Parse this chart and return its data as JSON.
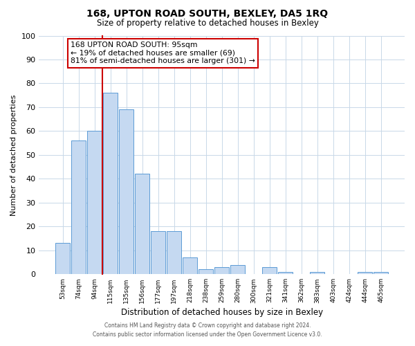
{
  "title": "168, UPTON ROAD SOUTH, BEXLEY, DA5 1RQ",
  "subtitle": "Size of property relative to detached houses in Bexley",
  "xlabel": "Distribution of detached houses by size in Bexley",
  "ylabel": "Number of detached properties",
  "bar_labels": [
    "53sqm",
    "74sqm",
    "94sqm",
    "115sqm",
    "135sqm",
    "156sqm",
    "177sqm",
    "197sqm",
    "218sqm",
    "238sqm",
    "259sqm",
    "280sqm",
    "300sqm",
    "321sqm",
    "341sqm",
    "362sqm",
    "383sqm",
    "403sqm",
    "424sqm",
    "444sqm",
    "465sqm"
  ],
  "bar_values": [
    13,
    56,
    60,
    76,
    69,
    42,
    18,
    18,
    7,
    2,
    3,
    4,
    0,
    3,
    1,
    0,
    1,
    0,
    0,
    1,
    1
  ],
  "bar_color": "#c5d9f1",
  "bar_edge_color": "#5b9bd5",
  "ylim": [
    0,
    100
  ],
  "vline_index": 2,
  "annotation_line1": "168 UPTON ROAD SOUTH: 95sqm",
  "annotation_line2": "← 19% of detached houses are smaller (69)",
  "annotation_line3": "81% of semi-detached houses are larger (301) →",
  "annotation_box_color": "#ffffff",
  "annotation_box_edge_color": "#cc0000",
  "vline_color": "#cc0000",
  "footer_line1": "Contains HM Land Registry data © Crown copyright and database right 2024.",
  "footer_line2": "Contains public sector information licensed under the Open Government Licence v3.0.",
  "background_color": "#ffffff",
  "grid_color": "#c8d8e8"
}
